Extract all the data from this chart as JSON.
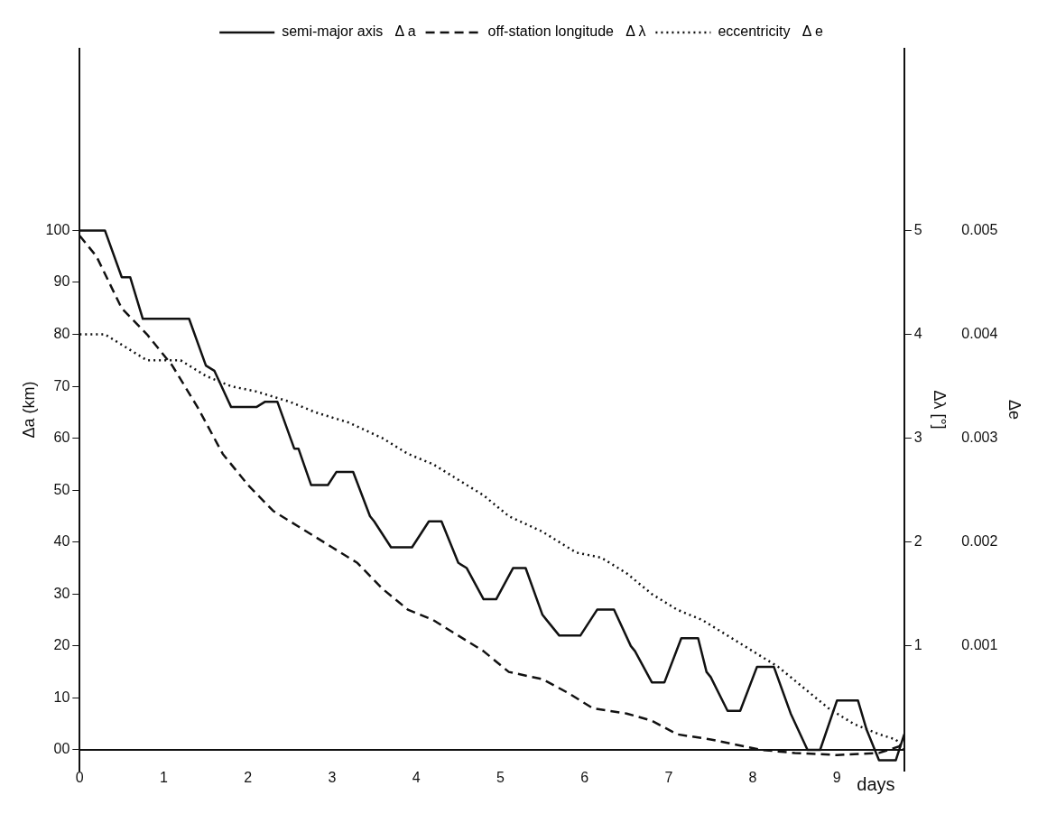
{
  "chart_data": {
    "type": "line",
    "xlabel": "days",
    "ylabel": "Δa (km)",
    "y2label": "Δλ [°]",
    "y3label": "Δe",
    "xlim": [
      0,
      9.8
    ],
    "xticks": [
      0,
      1,
      2,
      3,
      4,
      5,
      6,
      7,
      8,
      9
    ],
    "ylim": [
      -4,
      135
    ],
    "yticks": [
      {
        "value": 0,
        "label": "00"
      },
      10,
      20,
      30,
      40,
      50,
      60,
      70,
      80,
      90,
      100
    ],
    "y2lim": [
      -0.2,
      6.75
    ],
    "y2ticks": [
      1,
      2,
      3,
      4,
      5
    ],
    "y3lim": [
      -0.0002,
      0.00675
    ],
    "y3ticks": [
      0.001,
      0.002,
      0.003,
      0.004,
      0.005
    ],
    "grid": false,
    "legend": "top",
    "marker": "none",
    "series": [
      {
        "name": "semi-major axis   Δ a",
        "color": "#111111",
        "line_style": "solid",
        "axis": "y",
        "x": [
          0,
          0.3,
          0.5,
          0.6,
          0.75,
          1.3,
          1.5,
          1.6,
          1.8,
          2.1,
          2.2,
          2.35,
          2.55,
          2.6,
          2.75,
          2.95,
          3.05,
          3.25,
          3.45,
          3.5,
          3.7,
          3.95,
          4.15,
          4.3,
          4.5,
          4.6,
          4.8,
          4.95,
          5.15,
          5.3,
          5.5,
          5.55,
          5.7,
          5.95,
          6.15,
          6.35,
          6.55,
          6.6,
          6.8,
          6.95,
          7.15,
          7.35,
          7.45,
          7.5,
          7.7,
          7.85,
          8.05,
          8.25,
          8.45,
          8.65,
          8.8,
          9.0,
          9.25,
          9.35,
          9.5,
          9.7,
          9.8
        ],
        "values": [
          100,
          100,
          91,
          91,
          83,
          83,
          74,
          73,
          66,
          66,
          67,
          67,
          58,
          58,
          51,
          51,
          53.5,
          53.5,
          45,
          44,
          39,
          39,
          44,
          44,
          36,
          35,
          29,
          29,
          35,
          35,
          26,
          25,
          22,
          22,
          27,
          27,
          20,
          19,
          13,
          13,
          21.5,
          21.5,
          15,
          14,
          7.5,
          7.5,
          16,
          16,
          7,
          0,
          0,
          9.5,
          9.5,
          4,
          -2,
          -2,
          3
        ]
      },
      {
        "name": "off-station longitude   Δ λ",
        "color": "#111111",
        "line_style": "dashed",
        "axis": "y2",
        "x": [
          0,
          0.2,
          0.5,
          0.8,
          1.1,
          1.4,
          1.7,
          2,
          2.3,
          2.6,
          3,
          3.3,
          3.6,
          3.9,
          4.2,
          4.5,
          4.8,
          5.1,
          5.5,
          5.8,
          6.1,
          6.5,
          6.8,
          7.1,
          7.5,
          7.8,
          8.1,
          8.5,
          9,
          9.5,
          9.8
        ],
        "values": [
          4.95,
          4.75,
          4.25,
          4.0,
          3.7,
          3.3,
          2.85,
          2.55,
          2.3,
          2.15,
          1.95,
          1.8,
          1.55,
          1.35,
          1.25,
          1.1,
          0.95,
          0.75,
          0.68,
          0.55,
          0.4,
          0.35,
          0.28,
          0.15,
          0.1,
          0.05,
          0,
          -0.03,
          -0.05,
          -0.03,
          0.05
        ]
      },
      {
        "name": "eccentricity   Δ e",
        "color": "#111111",
        "line_style": "dotted",
        "axis": "y3",
        "x": [
          0,
          0.3,
          0.5,
          0.8,
          1.2,
          1.5,
          1.8,
          2.1,
          2.5,
          2.8,
          3.2,
          3.6,
          3.9,
          4.2,
          4.5,
          4.8,
          5.1,
          5.5,
          5.9,
          6.2,
          6.5,
          6.8,
          7.1,
          7.4,
          7.7,
          8,
          8.3,
          8.6,
          8.9,
          9.2,
          9.5,
          9.7,
          9.8
        ],
        "values": [
          0.004,
          0.004,
          0.0039,
          0.00375,
          0.00375,
          0.0036,
          0.0035,
          0.00345,
          0.00335,
          0.00325,
          0.00315,
          0.003,
          0.00285,
          0.00275,
          0.0026,
          0.00245,
          0.00225,
          0.0021,
          0.0019,
          0.00185,
          0.0017,
          0.0015,
          0.00135,
          0.00125,
          0.0011,
          0.00095,
          0.0008,
          0.0006,
          0.0004,
          0.00025,
          0.00015,
          0.0001,
          0
        ]
      }
    ]
  }
}
